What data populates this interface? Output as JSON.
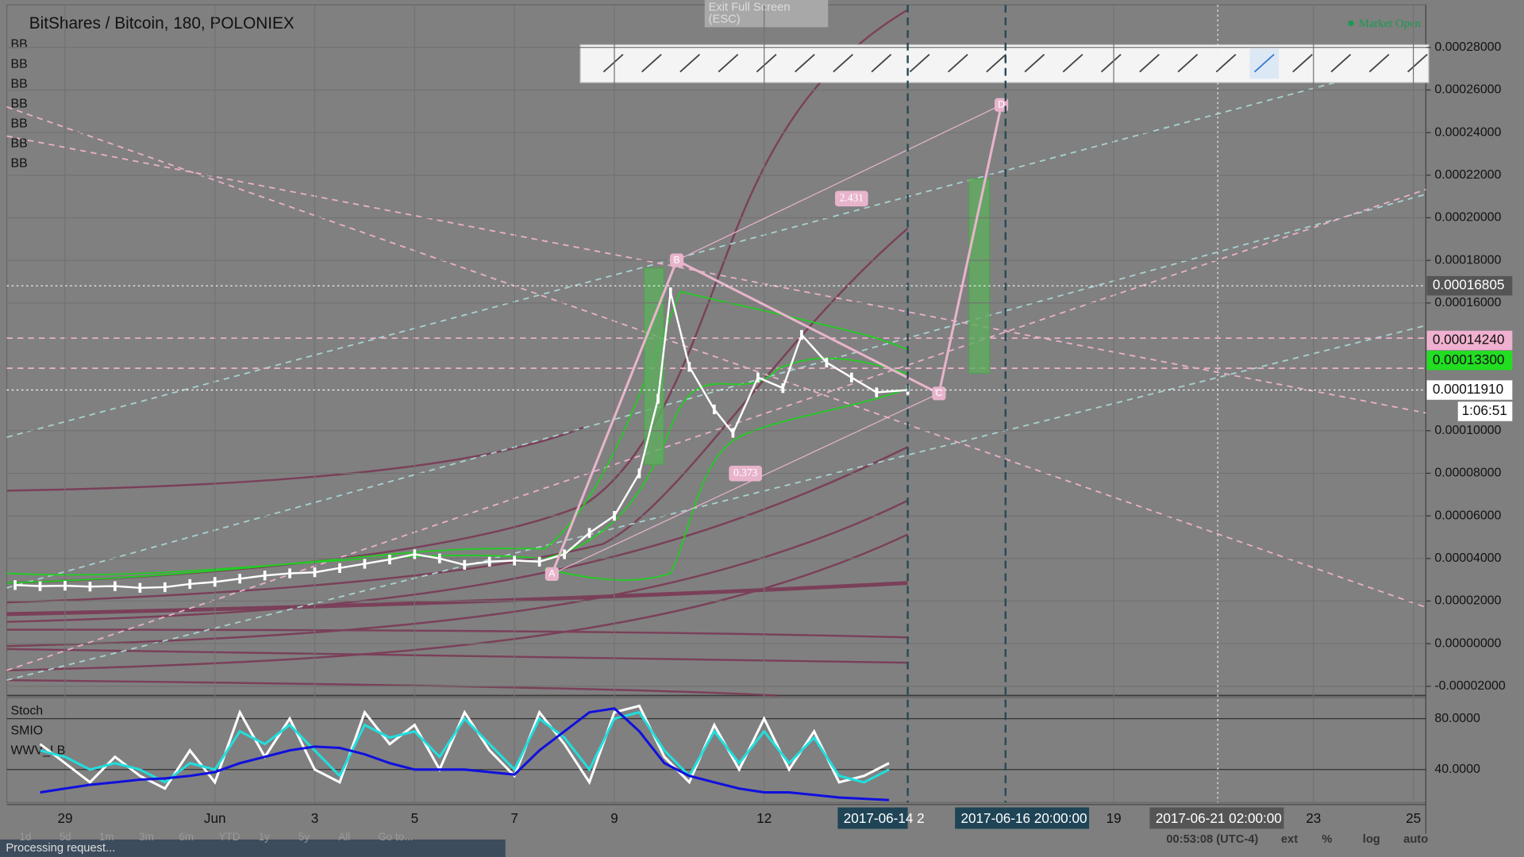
{
  "ui": {
    "title": "BitShares / Bitcoin, 180, POLONIEX",
    "indicators": [
      "BB",
      "BB",
      "BB",
      "BB",
      "BB",
      "BB",
      "BB"
    ],
    "market_status": "Market Open",
    "exit_fullscreen": [
      "Exit Full Screen",
      "(ESC)"
    ],
    "osc_indicators": [
      "Stoch",
      "SMIO",
      "WWV_LB"
    ],
    "ranges": [
      "1d",
      "5d",
      "1m",
      "3m",
      "6m",
      "YTD",
      "1y",
      "5y",
      "All",
      "Go to..."
    ],
    "status": "Processing request...",
    "clock": "00:53:08 (UTC-4)",
    "axis_buttons": [
      "ext",
      "%",
      "log",
      "auto"
    ],
    "countdown": "1:06:51"
  },
  "chart_data": [
    {
      "type": "line",
      "title": "BitShares / Bitcoin, 180, POLONIEX",
      "xlim": [
        "2017-05-27 20:00",
        "2017-06-25 06:00"
      ],
      "xticks": [
        {
          "value": "2017-05-29 00:00",
          "label": "29"
        },
        {
          "value": "2017-06-01 00:00",
          "label": "Jun"
        },
        {
          "value": "2017-06-03 00:00",
          "label": "3"
        },
        {
          "value": "2017-06-05 00:00",
          "label": "5"
        },
        {
          "value": "2017-06-07 00:00",
          "label": "7"
        },
        {
          "value": "2017-06-09 00:00",
          "label": "9"
        },
        {
          "value": "2017-06-12 00:00",
          "label": "12"
        },
        {
          "value": "2017-06-19 00:00",
          "label": "19"
        },
        {
          "value": "2017-06-23 00:00",
          "label": "23"
        },
        {
          "value": "2017-06-25 00:00",
          "label": "25"
        }
      ],
      "ylim": [
        -2.4e-05,
        0.0003
      ],
      "yticks": [
        {
          "value": -2e-05,
          "label": "-0.00002000"
        },
        {
          "value": 0,
          "label": "0.00000000"
        },
        {
          "value": 2e-05,
          "label": "0.00002000"
        },
        {
          "value": 4e-05,
          "label": "0.00004000"
        },
        {
          "value": 6e-05,
          "label": "0.00006000"
        },
        {
          "value": 8e-05,
          "label": "0.00008000"
        },
        {
          "value": 0.0001,
          "label": "0.00010000"
        },
        {
          "value": 0.00016,
          "label": "0.00016000"
        },
        {
          "value": 0.00018,
          "label": "0.00018000"
        },
        {
          "value": 0.0002,
          "label": "0.00020000"
        },
        {
          "value": 0.00022,
          "label": "0.00022000"
        },
        {
          "value": 0.00024,
          "label": "0.00024000"
        },
        {
          "value": 0.00026,
          "label": "0.00026000"
        },
        {
          "value": 0.00028,
          "label": "0.00028000"
        }
      ],
      "grid": true,
      "x": [
        "2017-05-28 00:00",
        "2017-05-28 12:00",
        "2017-05-29 00:00",
        "2017-05-29 12:00",
        "2017-05-30 00:00",
        "2017-05-30 12:00",
        "2017-05-31 00:00",
        "2017-05-31 12:00",
        "2017-06-01 00:00",
        "2017-06-01 12:00",
        "2017-06-02 00:00",
        "2017-06-02 12:00",
        "2017-06-03 00:00",
        "2017-06-03 12:00",
        "2017-06-04 00:00",
        "2017-06-04 12:00",
        "2017-06-05 00:00",
        "2017-06-05 12:00",
        "2017-06-06 00:00",
        "2017-06-06 12:00",
        "2017-06-07 00:00",
        "2017-06-07 12:00",
        "2017-06-08 00:00",
        "2017-06-08 12:00",
        "2017-06-09 00:00",
        "2017-06-09 12:00",
        "2017-06-09 21:00",
        "2017-06-10 03:00",
        "2017-06-10 12:00",
        "2017-06-11 00:00",
        "2017-06-11 09:00",
        "2017-06-11 21:00",
        "2017-06-12 09:00",
        "2017-06-12 18:00",
        "2017-06-13 06:00",
        "2017-06-13 18:00",
        "2017-06-14 06:00",
        "2017-06-14 21:00"
      ],
      "series": [
        {
          "name": "BTS/BTC",
          "color": "#ffffff",
          "values": [
            2.75e-05,
            2.7e-05,
            2.72e-05,
            2.68e-05,
            2.7e-05,
            2.62e-05,
            2.65e-05,
            2.8e-05,
            2.9e-05,
            3.05e-05,
            3.2e-05,
            3.3e-05,
            3.35e-05,
            3.55e-05,
            3.75e-05,
            3.95e-05,
            4.2e-05,
            4e-05,
            3.7e-05,
            3.85e-05,
            3.9e-05,
            3.85e-05,
            4.2e-05,
            5.2e-05,
            6e-05,
            8e-05,
            0.000115,
            0.000165,
            0.00013,
            0.00011,
            9.9e-05,
            0.000125,
            0.00012,
            0.000145,
            0.000132,
            0.000125,
            0.000118,
            0.0001191
          ]
        }
      ],
      "price_labels": [
        {
          "value": 0.00016805,
          "label": "0.00016805",
          "color": "#555555"
        },
        {
          "value": 0.0001424,
          "label": "0.00014240",
          "color": "#f0b0d0"
        },
        {
          "value": 0.000133,
          "label": "0.00013300",
          "color": "#22dd22"
        },
        {
          "value": 0.0001191,
          "label": "0.00011910",
          "color": "#ffffff"
        }
      ],
      "time_markers": [
        {
          "value": "2017-06-14 21:00",
          "label": "2017-06-14 2"
        },
        {
          "value": "2017-06-16 20:00",
          "label": "2017-06-16 20:00:00"
        },
        {
          "value": "2017-06-21 02:00",
          "label": "2017-06-21 02:00:00"
        }
      ],
      "pattern": [
        {
          "label": "A",
          "x": "2017-06-07 18:00",
          "y": 3.27e-05
        },
        {
          "label": "B",
          "x": "2017-06-10 06:00",
          "y": 0.00018
        },
        {
          "label": "C",
          "x": "2017-06-15 12:00",
          "y": 0.0001175
        },
        {
          "label": "D",
          "x": "2017-06-16 18:00",
          "y": 0.000253
        }
      ],
      "ratios": [
        {
          "label": "2.431",
          "x": "2017-06-13 18:00",
          "y": 0.000209
        },
        {
          "label": "0.373",
          "x": "2017-06-11 15:00",
          "y": 7.99e-05
        }
      ]
    },
    {
      "type": "line",
      "title": "Stoch",
      "xlim": [
        "2017-05-27 20:00",
        "2017-06-25 06:00"
      ],
      "ylim": [
        14,
        96.5
      ],
      "yticks": [
        {
          "value": 80,
          "label": "80.0000"
        },
        {
          "value": 40,
          "label": "40.0000"
        }
      ],
      "x": [
        "2017-05-28 12:00",
        "2017-05-29 00:00",
        "2017-05-29 12:00",
        "2017-05-30 00:00",
        "2017-05-30 12:00",
        "2017-05-31 00:00",
        "2017-05-31 12:00",
        "2017-06-01 00:00",
        "2017-06-01 12:00",
        "2017-06-02 00:00",
        "2017-06-02 12:00",
        "2017-06-03 00:00",
        "2017-06-03 12:00",
        "2017-06-04 00:00",
        "2017-06-04 12:00",
        "2017-06-05 00:00",
        "2017-06-05 12:00",
        "2017-06-06 00:00",
        "2017-06-06 12:00",
        "2017-06-07 00:00",
        "2017-06-07 12:00",
        "2017-06-08 00:00",
        "2017-06-08 12:00",
        "2017-06-09 00:00",
        "2017-06-09 12:00",
        "2017-06-10 00:00",
        "2017-06-10 12:00",
        "2017-06-11 00:00",
        "2017-06-11 12:00",
        "2017-06-12 00:00",
        "2017-06-12 12:00",
        "2017-06-13 00:00",
        "2017-06-13 12:00",
        "2017-06-14 00:00",
        "2017-06-14 12:00"
      ],
      "series": [
        {
          "name": "K",
          "color": "#ffffff",
          "values": [
            60,
            45,
            30,
            50,
            35,
            25,
            55,
            30,
            85,
            50,
            80,
            40,
            30,
            85,
            60,
            75,
            40,
            85,
            55,
            35,
            85,
            60,
            30,
            85,
            90,
            50,
            30,
            75,
            40,
            80,
            40,
            70,
            30,
            35,
            45
          ]
        },
        {
          "name": "D",
          "color": "#22dddd",
          "values": [
            55,
            50,
            40,
            45,
            40,
            30,
            45,
            40,
            70,
            60,
            75,
            55,
            35,
            75,
            65,
            70,
            50,
            80,
            60,
            40,
            80,
            65,
            40,
            80,
            85,
            55,
            35,
            70,
            45,
            70,
            45,
            65,
            35,
            30,
            40
          ]
        },
        {
          "name": "SMIO",
          "color": "#1010dd",
          "values": [
            22,
            25,
            28,
            30,
            32,
            33,
            35,
            38,
            45,
            50,
            55,
            58,
            57,
            52,
            45,
            40,
            40,
            40,
            38,
            36,
            55,
            70,
            85,
            88,
            70,
            45,
            35,
            30,
            25,
            22,
            22,
            20,
            18,
            17,
            16
          ]
        }
      ]
    }
  ]
}
